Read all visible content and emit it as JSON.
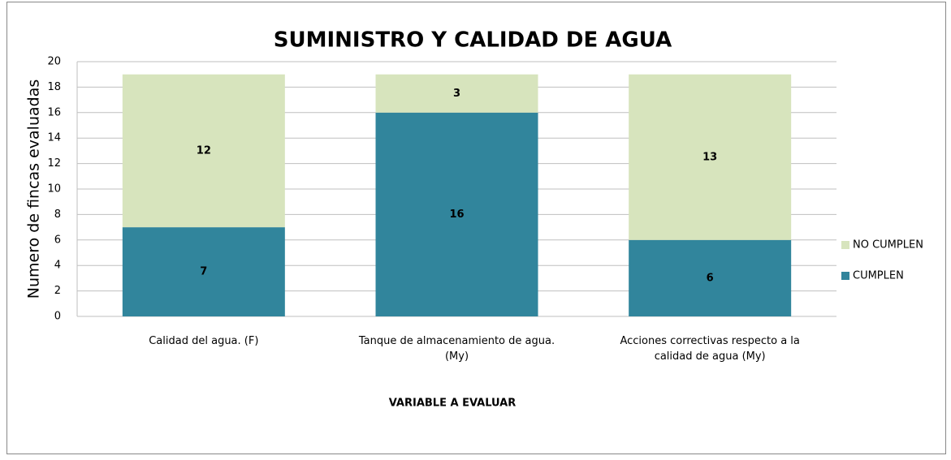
{
  "chart_data": {
    "type": "stacked_bar",
    "title": "SUMINISTRO Y CALIDAD DE AGUA",
    "x_label": "VARIABLE A EVALUAR",
    "y_label": "Numero de fincas evaluadas",
    "categories": [
      "Calidad del agua. (F)",
      "Tanque de almacenamiento de agua. (My)",
      "Acciones correctivas respecto a la calidad de agua (My)"
    ],
    "series": [
      {
        "name": "CUMPLEN",
        "color": "#31859c",
        "values": [
          7,
          16,
          6
        ]
      },
      {
        "name": "NO CUMPLEN",
        "color": "#d7e4bd",
        "values": [
          12,
          3,
          13
        ]
      }
    ],
    "ylim": [
      0,
      20
    ],
    "yticks": [
      0,
      2,
      4,
      6,
      8,
      10,
      12,
      14,
      16,
      18,
      20
    ],
    "grid": true,
    "legend": "right"
  }
}
